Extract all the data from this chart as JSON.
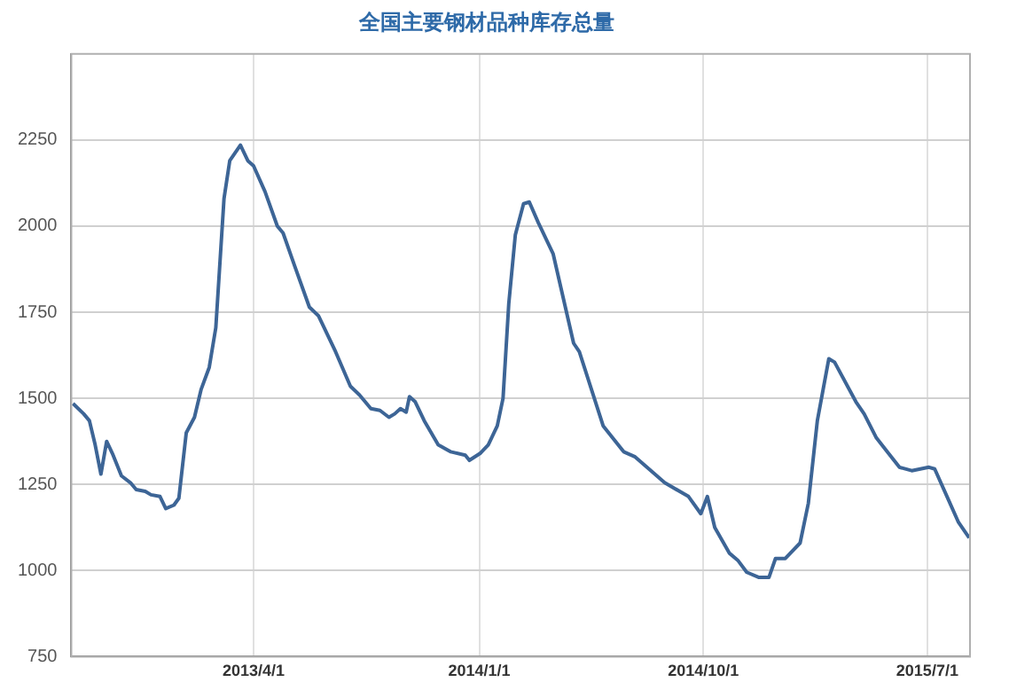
{
  "chart_data": {
    "type": "line",
    "title": "全国主要钢材品种库存总量",
    "x": [
      "2012-08-24",
      "2012-09-06",
      "2012-09-13",
      "2012-09-20",
      "2012-09-27",
      "2012-10-04",
      "2012-10-11",
      "2012-10-22",
      "2012-11-02",
      "2012-11-09",
      "2012-11-20",
      "2012-11-27",
      "2012-12-08",
      "2012-12-15",
      "2012-12-25",
      "2012-12-31",
      "2013-01-09",
      "2013-01-19",
      "2013-01-27",
      "2013-02-06",
      "2013-02-14",
      "2013-02-24",
      "2013-03-03",
      "2013-03-16",
      "2013-03-25",
      "2013-04-01",
      "2013-04-15",
      "2013-04-30",
      "2013-05-07",
      "2013-05-21",
      "2013-06-08",
      "2013-06-19",
      "2013-07-10",
      "2013-07-28",
      "2013-08-08",
      "2013-08-22",
      "2013-09-02",
      "2013-09-13",
      "2013-09-20",
      "2013-09-27",
      "2013-10-04",
      "2013-10-08",
      "2013-10-15",
      "2013-10-26",
      "2013-11-12",
      "2013-11-27",
      "2013-12-15",
      "2013-12-20",
      "2014-01-02",
      "2014-01-12",
      "2014-01-23",
      "2014-01-30",
      "2014-02-06",
      "2014-02-14",
      "2014-02-24",
      "2014-03-03",
      "2014-03-14",
      "2014-04-01",
      "2014-04-26",
      "2014-05-03",
      "2014-06-01",
      "2014-06-26",
      "2014-07-10",
      "2014-08-15",
      "2014-09-13",
      "2014-09-28",
      "2014-10-06",
      "2014-10-15",
      "2014-11-02",
      "2014-11-12",
      "2014-11-23",
      "2014-12-08",
      "2014-12-20",
      "2014-12-28",
      "2015-01-09",
      "2015-01-27",
      "2015-02-06",
      "2015-02-17",
      "2015-02-24",
      "2015-03-03",
      "2015-03-10",
      "2015-04-05",
      "2015-04-15",
      "2015-04-30",
      "2015-05-28",
      "2015-06-12",
      "2015-07-03",
      "2015-07-10",
      "2015-07-25",
      "2015-08-08",
      "2015-08-21"
    ],
    "series": [
      {
        "color": "#3d6596",
        "values": [
          1485,
          1455,
          1435,
          1365,
          1280,
          1375,
          1340,
          1275,
          1255,
          1235,
          1230,
          1220,
          1215,
          1180,
          1190,
          1210,
          1400,
          1445,
          1525,
          1590,
          1705,
          2080,
          2190,
          2235,
          2190,
          2175,
          2100,
          2000,
          1980,
          1885,
          1765,
          1740,
          1635,
          1535,
          1510,
          1470,
          1465,
          1445,
          1455,
          1470,
          1460,
          1505,
          1490,
          1435,
          1365,
          1345,
          1335,
          1320,
          1340,
          1365,
          1420,
          1500,
          1775,
          1975,
          2065,
          2070,
          2010,
          1920,
          1660,
          1635,
          1420,
          1345,
          1330,
          1255,
          1215,
          1165,
          1215,
          1125,
          1050,
          1030,
          995,
          980,
          980,
          1035,
          1035,
          1080,
          1195,
          1435,
          1525,
          1615,
          1605,
          1490,
          1455,
          1385,
          1300,
          1290,
          1300,
          1295,
          1215,
          1140,
          1095
        ]
      }
    ],
    "xlim": [
      "2012-08-22",
      "2015-08-22"
    ],
    "xticks": [
      {
        "value": "2013-04-01",
        "label": "2013/4/1"
      },
      {
        "value": "2014-01-01",
        "label": "2014/1/1"
      },
      {
        "value": "2014-10-01",
        "label": "2014/10/1"
      },
      {
        "value": "2015-07-01",
        "label": "2015/7/1"
      }
    ],
    "ylim": [
      750,
      2500
    ],
    "yticks": [
      750,
      1000,
      1250,
      1500,
      1750,
      2000,
      2250
    ],
    "grid": true,
    "legend": false,
    "marker": "none",
    "line_style": "solid"
  }
}
